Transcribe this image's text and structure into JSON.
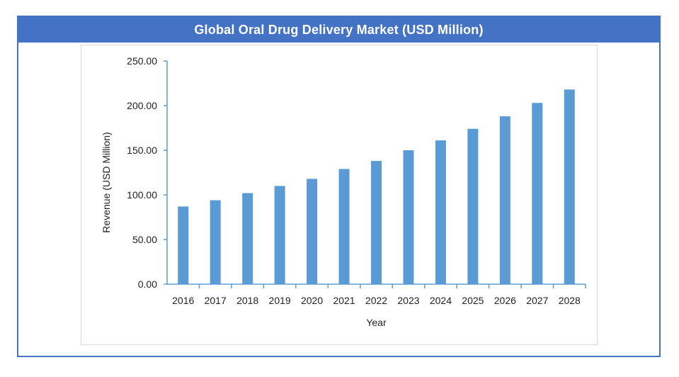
{
  "title": "Global Oral Drug Delivery Market (USD Million)",
  "colors": {
    "accent": "#4472c4",
    "bar": "#5b9bd5",
    "axis": "#5b9bd5"
  },
  "chart_data": {
    "type": "bar",
    "title": "Global Oral Drug Delivery Market (USD Million)",
    "xlabel": "Year",
    "ylabel": "Revenue (USD Million)",
    "ylim": [
      0,
      250
    ],
    "yticks": [
      "0.00",
      "50.00",
      "100.00",
      "150.00",
      "200.00",
      "250.00"
    ],
    "categories": [
      "2016",
      "2017",
      "2018",
      "2019",
      "2020",
      "2021",
      "2022",
      "2023",
      "2024",
      "2025",
      "2026",
      "2027",
      "2028"
    ],
    "values": [
      87,
      94,
      102,
      110,
      118,
      129,
      138,
      150,
      161,
      174,
      188,
      203,
      218
    ],
    "grid": false,
    "legend": "none"
  }
}
